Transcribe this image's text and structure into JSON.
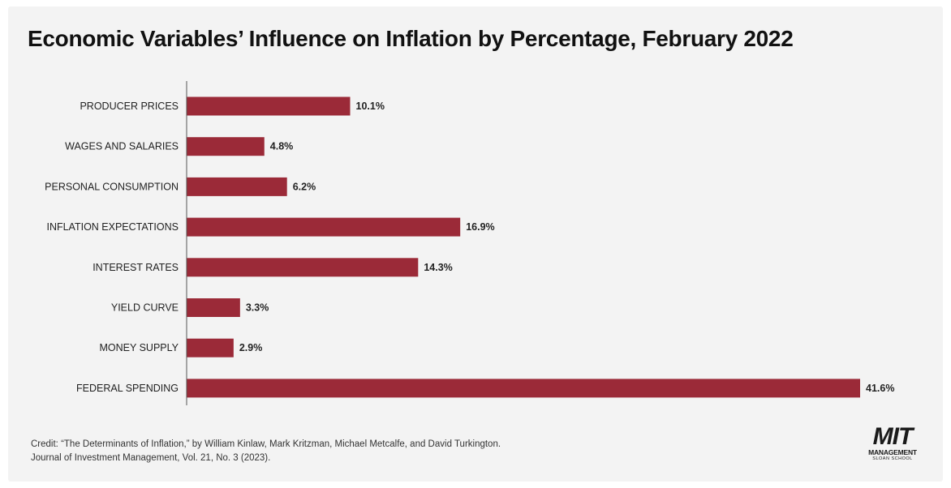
{
  "colors": {
    "bar": "#9b2a38",
    "background": "#f3f3f3",
    "axis": "#555555"
  },
  "chart_data": {
    "type": "bar",
    "orientation": "horizontal",
    "title": "Economic Variables’ Influence on Inflation by Percentage, February 2022",
    "categories": [
      "PRODUCER PRICES",
      "WAGES AND SALARIES",
      "PERSONAL CONSUMPTION",
      "INFLATION EXPECTATIONS",
      "INTEREST RATES",
      "YIELD CURVE",
      "MONEY SUPPLY",
      "FEDERAL SPENDING"
    ],
    "values": [
      10.1,
      4.8,
      6.2,
      16.9,
      14.3,
      3.3,
      2.9,
      41.6
    ],
    "value_labels": [
      "10.1%",
      "4.8%",
      "6.2%",
      "16.9%",
      "14.3%",
      "3.3%",
      "2.9%",
      "41.6%"
    ],
    "xlabel": "",
    "ylabel": "",
    "xlim": [
      0,
      41.6
    ],
    "grid": false,
    "legend": "none"
  },
  "credit": {
    "line1": "Credit: “The Determinants of Inflation,” by William Kinlaw, Mark Kritzman, Michael Metcalfe, and David Turkington.",
    "line2": "Journal of Investment Management, Vol. 21, No. 3 (2023)."
  },
  "logo": {
    "main": "MIT",
    "sub": "MANAGEMENT",
    "sub2": "SLOAN SCHOOL"
  }
}
